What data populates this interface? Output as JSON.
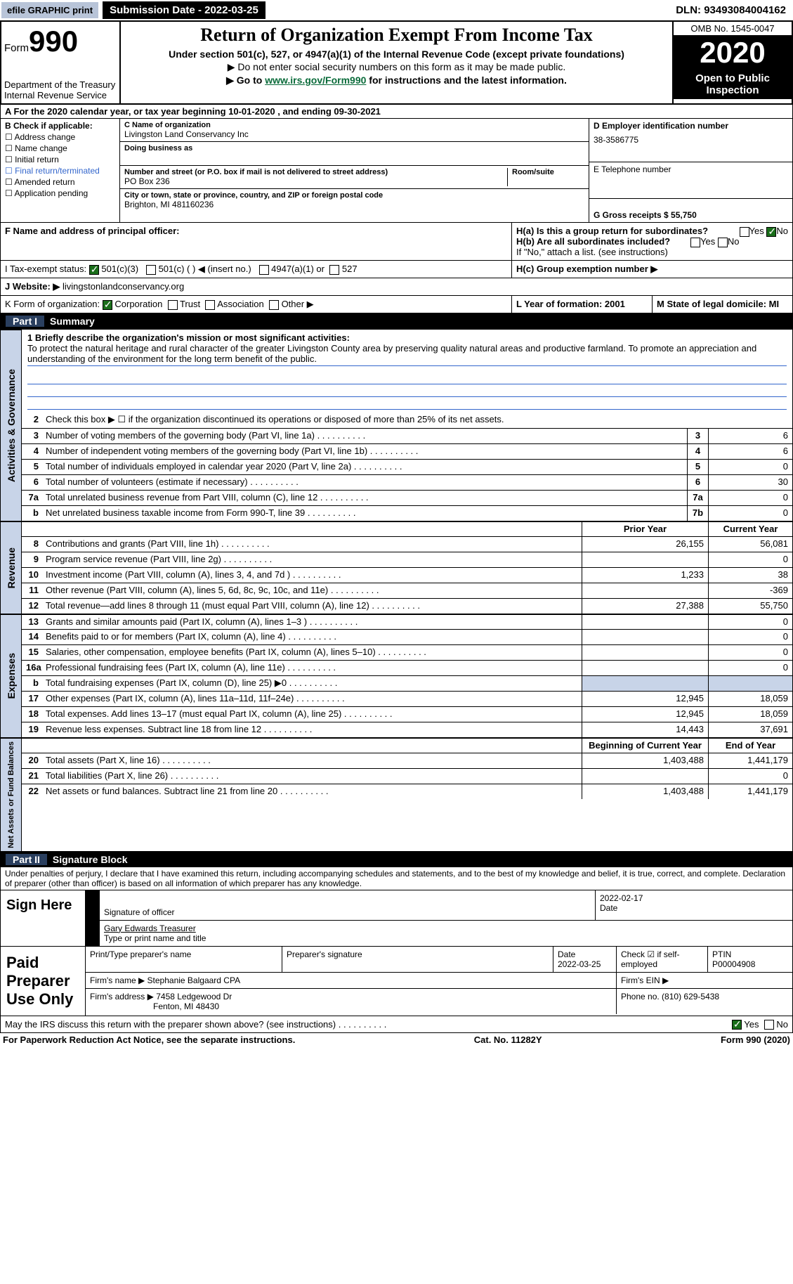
{
  "topbar": {
    "efile": "efile GRAPHIC print",
    "submission": "Submission Date - 2022-03-25",
    "dln": "DLN: 93493084004162"
  },
  "header": {
    "form_label": "Form",
    "form_num": "990",
    "dept": "Department of the Treasury",
    "irs": "Internal Revenue Service",
    "title": "Return of Organization Exempt From Income Tax",
    "subtitle": "Under section 501(c), 527, or 4947(a)(1) of the Internal Revenue Code (except private foundations)",
    "note1": "▶ Do not enter social security numbers on this form as it may be made public.",
    "note2_pre": "▶ Go to ",
    "note2_link": "www.irs.gov/Form990",
    "note2_post": " for instructions and the latest information.",
    "omb": "OMB No. 1545-0047",
    "year": "2020",
    "inspection": "Open to Public Inspection"
  },
  "period": "A For the 2020 calendar year, or tax year beginning 10-01-2020    , and ending 09-30-2021",
  "box_b": {
    "label": "B Check if applicable:",
    "items": [
      "Address change",
      "Name change",
      "Initial return",
      "Final return/terminated",
      "Amended return",
      "Application pending"
    ]
  },
  "box_c": {
    "name_label": "C Name of organization",
    "name": "Livingston Land Conservancy Inc",
    "dba_label": "Doing business as",
    "addr_label": "Number and street (or P.O. box if mail is not delivered to street address)",
    "room_label": "Room/suite",
    "addr": "PO Box 236",
    "city_label": "City or town, state or province, country, and ZIP or foreign postal code",
    "city": "Brighton, MI  481160236"
  },
  "box_d": {
    "ein_label": "D Employer identification number",
    "ein": "38-3586775",
    "phone_label": "E Telephone number",
    "gross_label": "G Gross receipts $ 55,750"
  },
  "box_f": "F Name and address of principal officer:",
  "box_h": {
    "ha": "H(a)  Is this a group return for subordinates?",
    "hb": "H(b)  Are all subordinates included?",
    "hb_note": "If \"No,\" attach a list. (see instructions)",
    "hc": "H(c)  Group exemption number ▶",
    "yes": "Yes",
    "no": "No"
  },
  "box_i": {
    "label": "I     Tax-exempt status:",
    "opts": [
      "501(c)(3)",
      "501(c) (   ) ◀ (insert no.)",
      "4947(a)(1) or",
      "527"
    ]
  },
  "box_j": {
    "label": "J    Website: ▶",
    "val": "livingstonlandconservancy.org"
  },
  "box_k": {
    "label": "K Form of organization:",
    "opts": [
      "Corporation",
      "Trust",
      "Association",
      "Other ▶"
    ]
  },
  "box_l": "L Year of formation: 2001",
  "box_m": "M State of legal domicile: MI",
  "part1": {
    "num": "Part I",
    "title": "Summary",
    "q1_label": "1  Briefly describe the organization's mission or most significant activities:",
    "q1": "To protect the natural heritage and rural character of the greater Livingston County area by preserving quality natural areas and productive farmland. To promote an appreciation and understanding of the environment for the long term benefit of the public.",
    "q2": "Check this box ▶ ☐  if the organization discontinued its operations or disposed of more than 25% of its net assets.",
    "vl_gov": "Activities & Governance",
    "vl_rev": "Revenue",
    "vl_exp": "Expenses",
    "vl_net": "Net Assets or Fund Balances",
    "lines_gov": [
      {
        "n": "3",
        "t": "Number of voting members of the governing body (Part VI, line 1a)",
        "box": "3",
        "v": "6"
      },
      {
        "n": "4",
        "t": "Number of independent voting members of the governing body (Part VI, line 1b)",
        "box": "4",
        "v": "6"
      },
      {
        "n": "5",
        "t": "Total number of individuals employed in calendar year 2020 (Part V, line 2a)",
        "box": "5",
        "v": "0"
      },
      {
        "n": "6",
        "t": "Total number of volunteers (estimate if necessary)",
        "box": "6",
        "v": "30"
      },
      {
        "n": "7a",
        "t": "Total unrelated business revenue from Part VIII, column (C), line 12",
        "box": "7a",
        "v": "0"
      },
      {
        "n": "b",
        "t": "Net unrelated business taxable income from Form 990-T, line 39",
        "box": "7b",
        "v": "0"
      }
    ],
    "col_prior": "Prior Year",
    "col_current": "Current Year",
    "col_begin": "Beginning of Current Year",
    "col_end": "End of Year",
    "lines_rev": [
      {
        "n": "8",
        "t": "Contributions and grants (Part VIII, line 1h)",
        "p": "26,155",
        "c": "56,081"
      },
      {
        "n": "9",
        "t": "Program service revenue (Part VIII, line 2g)",
        "p": "",
        "c": "0"
      },
      {
        "n": "10",
        "t": "Investment income (Part VIII, column (A), lines 3, 4, and 7d )",
        "p": "1,233",
        "c": "38"
      },
      {
        "n": "11",
        "t": "Other revenue (Part VIII, column (A), lines 5, 6d, 8c, 9c, 10c, and 11e)",
        "p": "",
        "c": "-369"
      },
      {
        "n": "12",
        "t": "Total revenue—add lines 8 through 11 (must equal Part VIII, column (A), line 12)",
        "p": "27,388",
        "c": "55,750"
      }
    ],
    "lines_exp": [
      {
        "n": "13",
        "t": "Grants and similar amounts paid (Part IX, column (A), lines 1–3 )",
        "p": "",
        "c": "0"
      },
      {
        "n": "14",
        "t": "Benefits paid to or for members (Part IX, column (A), line 4)",
        "p": "",
        "c": "0"
      },
      {
        "n": "15",
        "t": "Salaries, other compensation, employee benefits (Part IX, column (A), lines 5–10)",
        "p": "",
        "c": "0"
      },
      {
        "n": "16a",
        "t": "Professional fundraising fees (Part IX, column (A), line 11e)",
        "p": "",
        "c": "0"
      },
      {
        "n": "b",
        "t": "Total fundraising expenses (Part IX, column (D), line 25) ▶0",
        "p": "shaded",
        "c": "shaded"
      },
      {
        "n": "17",
        "t": "Other expenses (Part IX, column (A), lines 11a–11d, 11f–24e)",
        "p": "12,945",
        "c": "18,059"
      },
      {
        "n": "18",
        "t": "Total expenses. Add lines 13–17 (must equal Part IX, column (A), line 25)",
        "p": "12,945",
        "c": "18,059"
      },
      {
        "n": "19",
        "t": "Revenue less expenses. Subtract line 18 from line 12",
        "p": "14,443",
        "c": "37,691"
      }
    ],
    "lines_net": [
      {
        "n": "20",
        "t": "Total assets (Part X, line 16)",
        "p": "1,403,488",
        "c": "1,441,179"
      },
      {
        "n": "21",
        "t": "Total liabilities (Part X, line 26)",
        "p": "",
        "c": "0"
      },
      {
        "n": "22",
        "t": "Net assets or fund balances. Subtract line 21 from line 20",
        "p": "1,403,488",
        "c": "1,441,179"
      }
    ]
  },
  "part2": {
    "num": "Part II",
    "title": "Signature Block",
    "penalties": "Under penalties of perjury, I declare that I have examined this return, including accompanying schedules and statements, and to the best of my knowledge and belief, it is true, correct, and complete. Declaration of preparer (other than officer) is based on all information of which preparer has any knowledge.",
    "sign_here": "Sign Here",
    "sig_officer": "Signature of officer",
    "sig_date": "2022-02-17",
    "date_label": "Date",
    "officer_name": "Gary Edwards  Treasurer",
    "type_label": "Type or print name and title",
    "paid": "Paid Preparer Use Only",
    "prep_name_label": "Print/Type preparer's name",
    "prep_sig_label": "Preparer's signature",
    "prep_date_label": "Date",
    "prep_date": "2022-03-25",
    "check_if": "Check ☑ if self-employed",
    "ptin_label": "PTIN",
    "ptin": "P00004908",
    "firm_name_label": "Firm's name    ▶",
    "firm_name": "Stephanie Balgaard CPA",
    "firm_ein_label": "Firm's EIN ▶",
    "firm_addr_label": "Firm's address ▶",
    "firm_addr": "7458 Ledgewood Dr",
    "firm_city": "Fenton, MI  48430",
    "firm_phone_label": "Phone no. (810) 629-5438",
    "discuss": "May the IRS discuss this return with the preparer shown above? (see instructions)",
    "yes": "Yes",
    "no": "No"
  },
  "footer": {
    "paperwork": "For Paperwork Reduction Act Notice, see the separate instructions.",
    "cat": "Cat. No. 11282Y",
    "form": "Form 990 (2020)"
  }
}
